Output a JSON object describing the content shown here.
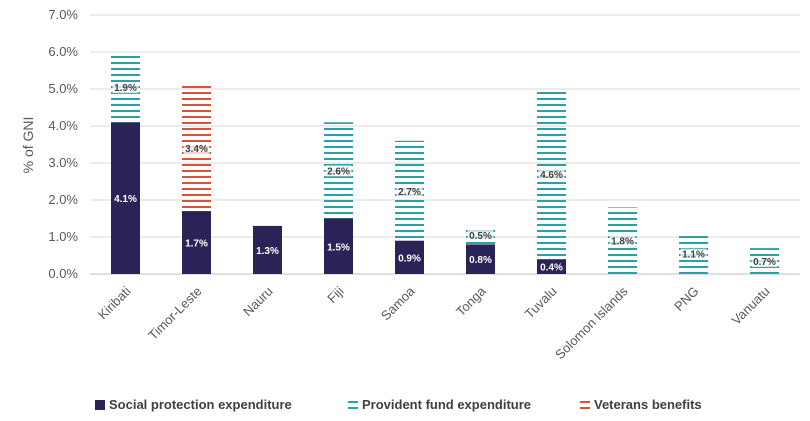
{
  "chart_data": {
    "type": "bar",
    "stacked": true,
    "title": "",
    "xlabel": "",
    "ylabel": "% of GNI",
    "ylim": [
      0,
      7
    ],
    "yticks": [
      "0.0%",
      "1.0%",
      "2.0%",
      "3.0%",
      "4.0%",
      "5.0%",
      "6.0%",
      "7.0%"
    ],
    "categories": [
      "Kiribati",
      "Timor-Leste",
      "Nauru",
      "Fiji",
      "Samoa",
      "Tonga",
      "Tuvalu",
      "Solomon Islands",
      "PNG",
      "Vanuatu"
    ],
    "series": [
      {
        "name": "Social protection expenditure",
        "style": "solid",
        "color": "#2b2358",
        "values": [
          4.1,
          1.7,
          1.3,
          1.5,
          0.9,
          0.8,
          0.4,
          0,
          0,
          0
        ],
        "labels": [
          "4.1%",
          "1.7%",
          "1.3%",
          "1.5%",
          "0.9%",
          "0.8%",
          "0.4%",
          "",
          "",
          ""
        ]
      },
      {
        "name": "Provident fund expenditure",
        "style": "dashed",
        "color": "#2aa1a6",
        "values": [
          1.9,
          0,
          0,
          2.6,
          2.7,
          0.5,
          4.6,
          1.8,
          1.1,
          0.7
        ],
        "labels": [
          "1.9%",
          "",
          "",
          "2.6%",
          "2.7%",
          "0.5%",
          "4.6%",
          "1.8%",
          "1.1%",
          "0.7%"
        ]
      },
      {
        "name": "Veterans benefits",
        "style": "dashed",
        "color": "#d9533b",
        "values": [
          0,
          3.4,
          0,
          0,
          0,
          0,
          0,
          0,
          0,
          0
        ],
        "labels": [
          "",
          "3.4%",
          "",
          "",
          "",
          "",
          "",
          "",
          "",
          ""
        ]
      }
    ],
    "legend_position": "bottom-left",
    "grid": true
  }
}
